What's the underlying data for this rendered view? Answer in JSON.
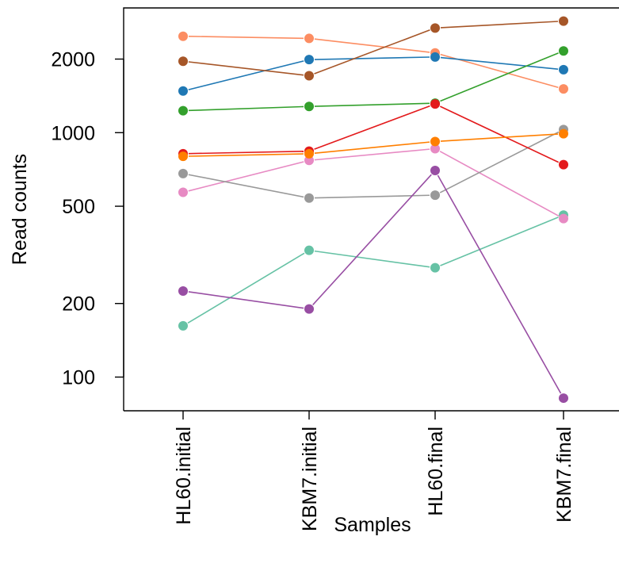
{
  "chart_data": {
    "type": "line",
    "title": "",
    "xlabel": "Samples",
    "ylabel": "Read counts",
    "y_scale": "log",
    "ylim": [
      72,
      3400
    ],
    "y_ticks": [
      100,
      200,
      500,
      1000,
      2000
    ],
    "y_tick_labels": [
      "100",
      "200",
      "500",
      "1000",
      "2000"
    ],
    "categories": [
      "HL60.initial",
      "KBM7.initial",
      "HL60.final",
      "KBM7.final"
    ],
    "grid": false,
    "legend": "none",
    "series": [
      {
        "color": "#66C2A5",
        "values": [
          162,
          330,
          280,
          460
        ]
      },
      {
        "color": "#FC8D62",
        "values": [
          2480,
          2430,
          2120,
          1510
        ]
      },
      {
        "color": "#8DA0CB",
        "values": [
          null,
          null,
          null,
          null
        ]
      },
      {
        "color": "#E78AC3",
        "values": [
          570,
          770,
          860,
          445
        ]
      },
      {
        "color": "#A6D854",
        "values": [
          null,
          null,
          null,
          null
        ]
      },
      {
        "color": "#999999",
        "values": [
          680,
          540,
          555,
          1030
        ]
      },
      {
        "color": "#1F78B4",
        "values": [
          1480,
          1990,
          2040,
          1810
        ]
      },
      {
        "color": "#33A02C",
        "values": [
          1230,
          1280,
          1320,
          2160
        ]
      },
      {
        "color": "#E31A1C",
        "values": [
          820,
          840,
          1310,
          740
        ]
      },
      {
        "color": "#FF7F00",
        "values": [
          800,
          820,
          920,
          990
        ]
      },
      {
        "color": "#984EA3",
        "values": [
          225,
          190,
          700,
          82
        ]
      },
      {
        "color": "#A65628",
        "values": [
          1960,
          1710,
          2680,
          2860
        ]
      }
    ]
  }
}
